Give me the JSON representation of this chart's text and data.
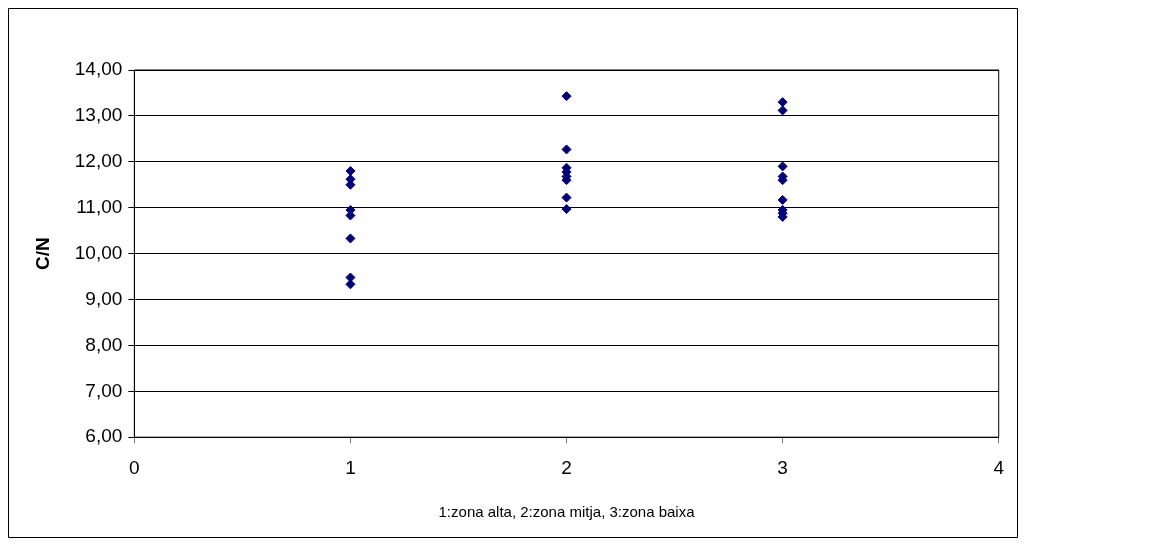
{
  "chart_data": {
    "type": "scatter",
    "xlabel": "1:zona alta, 2:zona mitja, 3:zona baixa",
    "ylabel": "C/N",
    "x": [
      1,
      1,
      1,
      1,
      1,
      1,
      1,
      1,
      2,
      2,
      2,
      2,
      2,
      2,
      2,
      2,
      3,
      3,
      3,
      3,
      3,
      3,
      3,
      3,
      3
    ],
    "values": [
      11.8,
      11.62,
      11.5,
      10.95,
      10.83,
      10.33,
      9.48,
      9.33,
      13.43,
      12.27,
      11.87,
      11.78,
      11.68,
      11.6,
      11.22,
      10.97,
      13.3,
      13.12,
      11.9,
      11.68,
      11.6,
      11.17,
      10.95,
      10.88,
      10.8
    ],
    "color": "#000080",
    "marker": "diamond",
    "grid": "y",
    "legend": false,
    "xlim": [
      0,
      4
    ],
    "xticks": [
      0,
      1,
      2,
      3,
      4
    ],
    "ylim": [
      6,
      14
    ],
    "yticks": [
      {
        "value": 6,
        "label": "6,00"
      },
      {
        "value": 7,
        "label": "7,00"
      },
      {
        "value": 8,
        "label": "8,00"
      },
      {
        "value": 9,
        "label": "9,00"
      },
      {
        "value": 10,
        "label": "10,00"
      },
      {
        "value": 11,
        "label": "11,00"
      },
      {
        "value": 12,
        "label": "12,00"
      },
      {
        "value": 13,
        "label": "13,00"
      },
      {
        "value": 14,
        "label": "14,00"
      }
    ]
  }
}
